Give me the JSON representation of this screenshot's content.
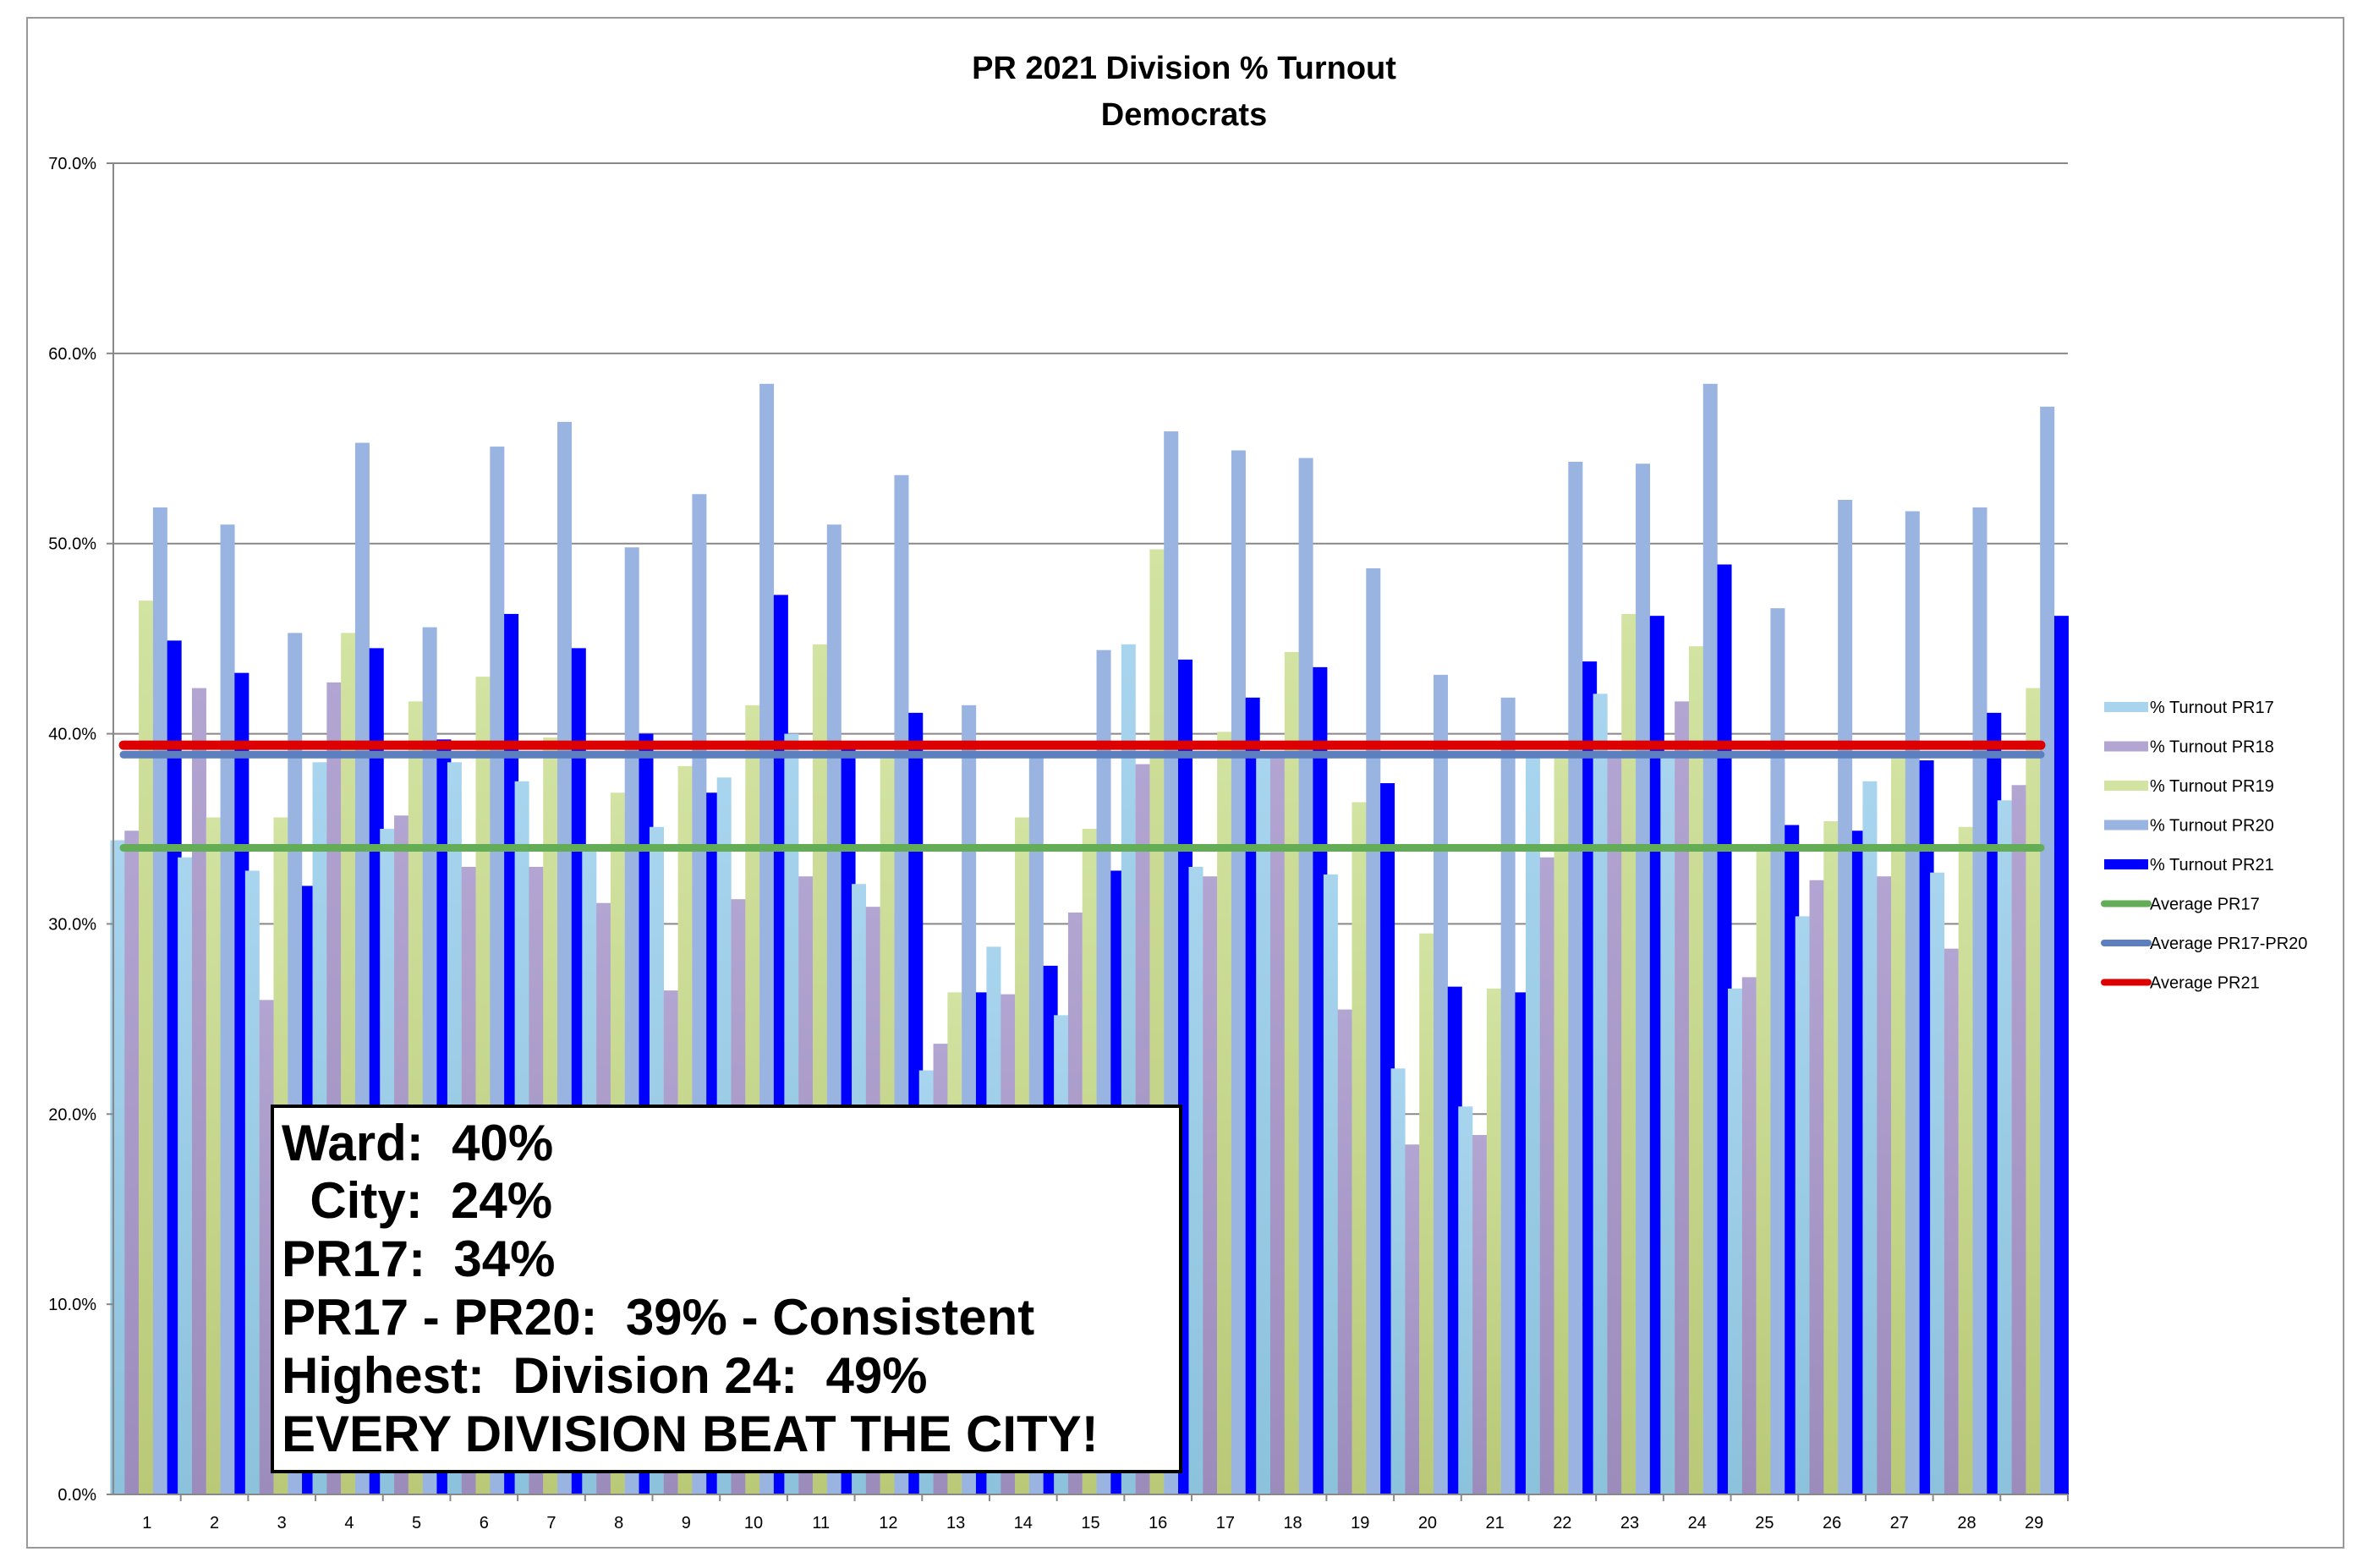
{
  "chart_data": {
    "type": "bar",
    "title": "PR 2021 Division % Turnout",
    "subtitle": "Democrats",
    "xlabel": "",
    "ylabel": "",
    "ylim": [
      0,
      70
    ],
    "yticks": [
      "0.0%",
      "10.0%",
      "20.0%",
      "30.0%",
      "40.0%",
      "50.0%",
      "60.0%",
      "70.0%"
    ],
    "grid": true,
    "legend_position": "right",
    "categories": [
      "1",
      "2",
      "3",
      "4",
      "5",
      "6",
      "7",
      "8",
      "9",
      "10",
      "11",
      "12",
      "13",
      "14",
      "15",
      "16",
      "17",
      "18",
      "19",
      "20",
      "21",
      "22",
      "23",
      "24",
      "25",
      "26",
      "27",
      "28",
      "29"
    ],
    "series": [
      {
        "name": "% Turnout PR17",
        "color": "#a8d4ee",
        "values": [
          34.4,
          33.5,
          32.8,
          38.5,
          35.0,
          38.5,
          37.5,
          34.0,
          35.1,
          37.7,
          40.0,
          32.1,
          22.3,
          28.8,
          25.2,
          44.7,
          33.0,
          39.0,
          32.6,
          22.4,
          20.4,
          39.0,
          42.1,
          39.0,
          26.6,
          30.4,
          37.5,
          32.7,
          36.5
        ]
      },
      {
        "name": "% Turnout PR18",
        "color": "#b3a5d2",
        "values": [
          34.9,
          42.4,
          26.0,
          42.7,
          35.7,
          33.0,
          33.0,
          31.1,
          26.5,
          31.3,
          32.5,
          30.9,
          23.7,
          26.3,
          30.6,
          38.4,
          32.5,
          39.0,
          25.5,
          18.4,
          18.9,
          33.5,
          39.0,
          41.7,
          27.2,
          32.3,
          32.5,
          28.7,
          37.3
        ]
      },
      {
        "name": "% Turnout PR19",
        "color": "#d2e3a2",
        "values": [
          47.0,
          35.6,
          35.6,
          45.3,
          41.7,
          43.0,
          39.8,
          36.9,
          38.3,
          41.5,
          44.7,
          39.0,
          26.4,
          35.6,
          35.0,
          49.7,
          40.1,
          44.3,
          36.4,
          29.5,
          26.6,
          39.0,
          46.3,
          44.6,
          34.0,
          35.4,
          39.0,
          35.1,
          42.4
        ]
      },
      {
        "name": "% Turnout PR20",
        "color": "#99b4e0",
        "values": [
          51.9,
          51.0,
          45.3,
          55.3,
          45.6,
          55.1,
          56.4,
          49.8,
          52.6,
          58.4,
          51.0,
          53.6,
          41.5,
          39.0,
          44.4,
          55.9,
          54.9,
          54.5,
          48.7,
          43.1,
          41.9,
          54.3,
          54.2,
          58.4,
          46.6,
          52.3,
          51.7,
          51.9,
          57.2
        ]
      },
      {
        "name": "% Turnout PR21",
        "color": "#0000ff",
        "values": [
          44.9,
          43.2,
          32.0,
          44.5,
          39.7,
          46.3,
          44.5,
          40.0,
          36.9,
          47.3,
          39.6,
          41.1,
          26.4,
          27.8,
          32.8,
          43.9,
          41.9,
          43.5,
          37.4,
          26.7,
          26.4,
          43.8,
          46.2,
          48.9,
          35.2,
          34.9,
          38.6,
          41.1,
          46.2
        ]
      }
    ],
    "lines": [
      {
        "name": "Average PR17",
        "color": "#62ad55",
        "value": 34.0
      },
      {
        "name": "Average PR17-PR20",
        "color": "#5b7fbf",
        "value": 38.9
      },
      {
        "name": "Average PR21",
        "color": "#dd0000",
        "value": 39.4
      }
    ],
    "annotation": [
      "Ward:  40%",
      "  City:  24%",
      "PR17:  34%",
      "PR17 - PR20:  39% - Consistent",
      "Highest:  Division 24:  49%",
      "EVERY DIVISION BEAT THE CITY!"
    ]
  }
}
